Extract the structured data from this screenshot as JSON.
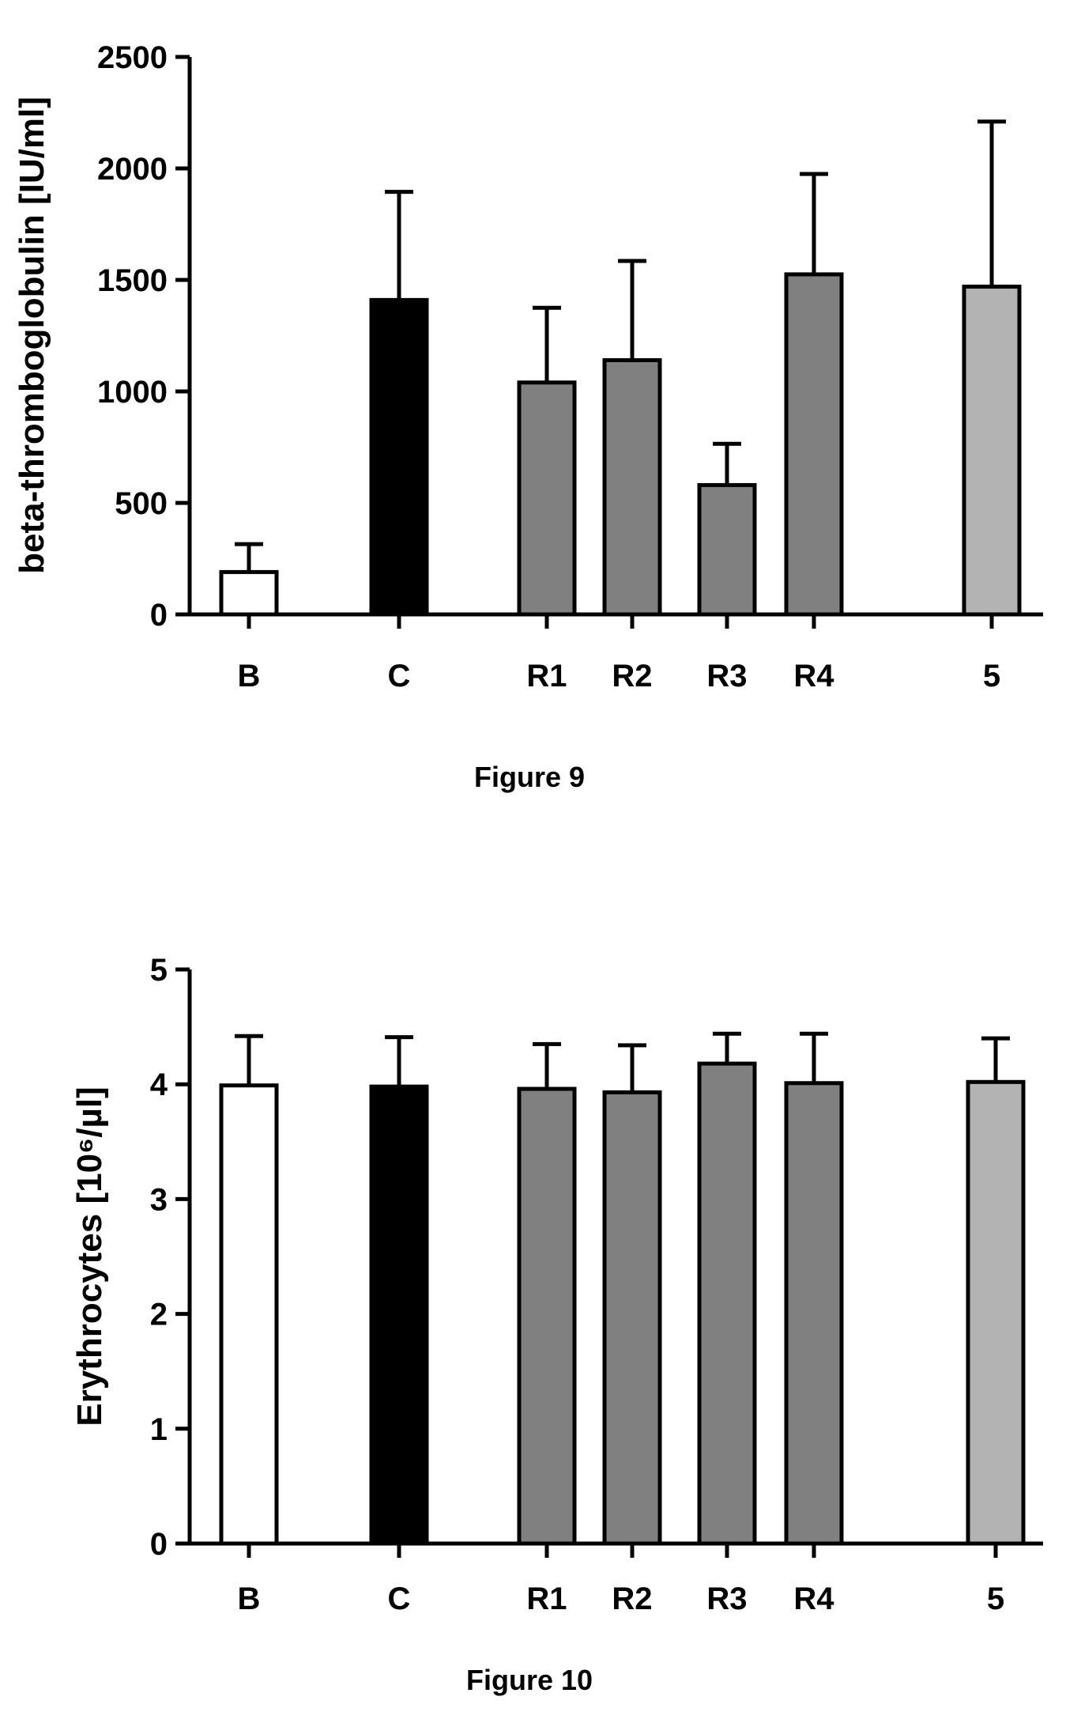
{
  "figures": [
    {
      "caption": "Figure 9",
      "chart_data": {
        "type": "bar",
        "categories": [
          "B",
          "C",
          "R1",
          "R2",
          "R3",
          "R4",
          "5"
        ],
        "values": [
          190,
          1410,
          1040,
          1140,
          580,
          1525,
          1470
        ],
        "errors": [
          125,
          485,
          335,
          445,
          185,
          450,
          740
        ],
        "title": "",
        "xlabel": "",
        "ylabel": "beta-thromboglobulin [IU/ml]",
        "ylim": [
          0,
          2500
        ],
        "yticks": [
          0,
          500,
          1000,
          1500,
          2000,
          2500
        ],
        "grid": false,
        "bar_fills": [
          "#ffffff",
          "#000000",
          "#808080",
          "#808080",
          "#808080",
          "#808080",
          "#b3b3b3"
        ]
      }
    },
    {
      "caption": "Figure 10",
      "chart_data": {
        "type": "bar",
        "categories": [
          "B",
          "C",
          "R1",
          "R2",
          "R3",
          "R4",
          "5"
        ],
        "values": [
          3.99,
          3.98,
          3.96,
          3.93,
          4.18,
          4.01,
          4.02
        ],
        "errors": [
          0.43,
          0.43,
          0.39,
          0.41,
          0.26,
          0.43,
          0.38
        ],
        "title": "",
        "xlabel": "",
        "ylabel": "Erythrocytes [10⁶/µl]",
        "ylim": [
          0,
          5
        ],
        "yticks": [
          0,
          1,
          2,
          3,
          4,
          5
        ],
        "grid": false,
        "bar_fills": [
          "#ffffff",
          "#000000",
          "#808080",
          "#808080",
          "#808080",
          "#808080",
          "#b3b3b3"
        ]
      }
    }
  ]
}
